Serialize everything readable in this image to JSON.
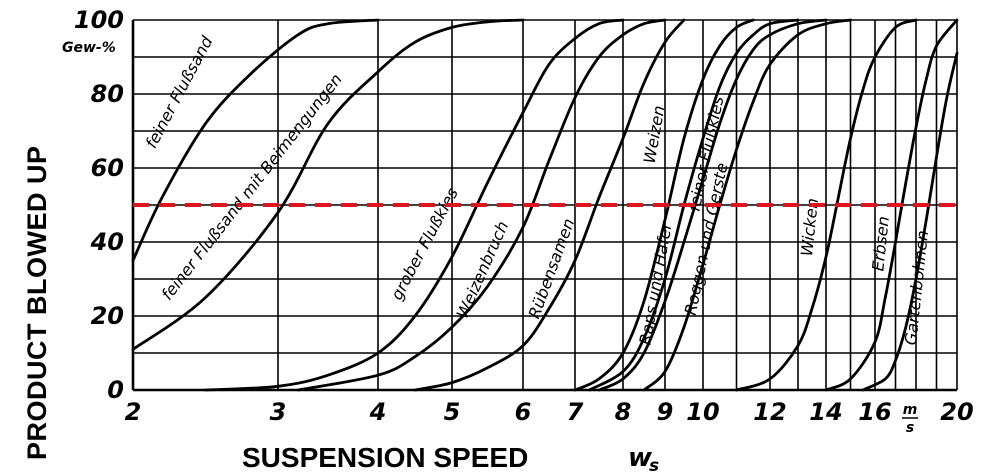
{
  "chart_data": {
    "type": "line",
    "title": "",
    "ylabel": "PRODUCT BLOWED UP",
    "yunit": "Gew-%",
    "xlabel": "SUSPENSION SPEED",
    "xsymbol": "w",
    "xsymbol_sub": "s",
    "xunit_num": "m",
    "xunit_den": "s",
    "ylim": [
      0,
      100
    ],
    "xlim": [
      2,
      20
    ],
    "x_scale": "nonlinear",
    "x_tick_labels": [
      "2",
      "3",
      "4",
      "5",
      "6",
      "7",
      "8",
      "9",
      "10",
      "12",
      "14",
      "16",
      "20"
    ],
    "y_tick_labels": [
      "0",
      "20",
      "40",
      "60",
      "80",
      "100"
    ],
    "grid": true,
    "reference_line": {
      "y": 50,
      "color": "#e0141e",
      "style": "dashed"
    },
    "series": [
      {
        "name": "feiner Flußsand",
        "x": [
          2.0,
          2.2,
          2.5,
          2.8,
          3.2,
          3.5,
          4.0
        ],
        "y": [
          35,
          52,
          72,
          85,
          96,
          99,
          100
        ]
      },
      {
        "name": "feiner Flußsand mit Beimengungen",
        "x": [
          2.0,
          2.5,
          3.0,
          3.5,
          4.0,
          4.5,
          5.0,
          5.5,
          6.0
        ],
        "y": [
          11,
          25,
          48,
          72,
          86,
          94,
          98,
          99.5,
          100
        ]
      },
      {
        "name": "grober Flußkies",
        "x": [
          2.5,
          3.0,
          3.5,
          4.0,
          4.5,
          5.0,
          5.5,
          6.0,
          6.5,
          7.0,
          7.5,
          8.0
        ],
        "y": [
          0,
          1,
          4,
          10,
          20,
          36,
          56,
          75,
          88,
          95,
          99,
          100
        ]
      },
      {
        "name": "Weizenbruch",
        "x": [
          3.2,
          4.0,
          4.5,
          5.0,
          5.5,
          6.0,
          6.5,
          7.0,
          7.5,
          8.0,
          8.5,
          9.0
        ],
        "y": [
          0,
          4,
          9,
          17,
          28,
          44,
          62,
          79,
          90,
          96,
          99,
          100
        ]
      },
      {
        "name": "Rübensamen",
        "x": [
          4.5,
          5.0,
          5.5,
          6.0,
          6.5,
          7.0,
          7.5,
          8.0,
          8.5,
          9.0,
          9.5
        ],
        "y": [
          0,
          2,
          6,
          12,
          22,
          35,
          52,
          68,
          83,
          94,
          100
        ]
      },
      {
        "name": "Raps und Hafer",
        "x": [
          7.0,
          7.5,
          8.0,
          8.5,
          9.0,
          9.5,
          10.0,
          10.5,
          11.0,
          11.5
        ],
        "y": [
          0,
          3,
          10,
          24,
          46,
          68,
          84,
          93,
          98,
          100
        ]
      },
      {
        "name": "Weizen",
        "x": [
          7.3,
          8.0,
          8.5,
          9.0,
          9.5,
          10.0,
          10.5,
          11.0,
          11.5,
          12.0,
          13.0
        ],
        "y": [
          0,
          5,
          14,
          30,
          50,
          68,
          82,
          91,
          96,
          99,
          100
        ]
      },
      {
        "name": "feiner Flußkies",
        "x": [
          7.5,
          8.0,
          8.5,
          9.0,
          9.5,
          10.0,
          10.5,
          11.0,
          11.5,
          12.0,
          13.0,
          14.0
        ],
        "y": [
          0,
          3,
          10,
          24,
          40,
          57,
          72,
          84,
          92,
          96,
          99,
          100
        ]
      },
      {
        "name": "Roggen und Gerste",
        "x": [
          8.5,
          9.0,
          9.5,
          10.0,
          10.5,
          11.0,
          11.5,
          12.0,
          13.0,
          14.0,
          15.0
        ],
        "y": [
          0,
          5,
          17,
          34,
          50,
          65,
          78,
          88,
          96,
          99,
          100
        ]
      },
      {
        "name": "Wicken",
        "x": [
          11.0,
          12.0,
          13.0,
          13.5,
          14.0,
          14.5,
          15.0,
          15.5,
          16.0,
          17.0,
          18.0
        ],
        "y": [
          0,
          3,
          12,
          22,
          36,
          52,
          68,
          81,
          90,
          98,
          100
        ]
      },
      {
        "name": "Erbsen",
        "x": [
          14.0,
          15.0,
          16.0,
          16.5,
          17.0,
          17.5,
          18.0,
          18.5,
          19.0,
          20.0
        ],
        "y": [
          0,
          3,
          13,
          25,
          40,
          56,
          71,
          84,
          93,
          100
        ]
      },
      {
        "name": "Gartenbohnen",
        "x": [
          15.5,
          16.5,
          17.0,
          17.5,
          18.0,
          18.5,
          19.0,
          19.5,
          20.0
        ],
        "y": [
          0,
          3,
          8,
          17,
          30,
          46,
          63,
          79,
          91
        ]
      }
    ]
  }
}
